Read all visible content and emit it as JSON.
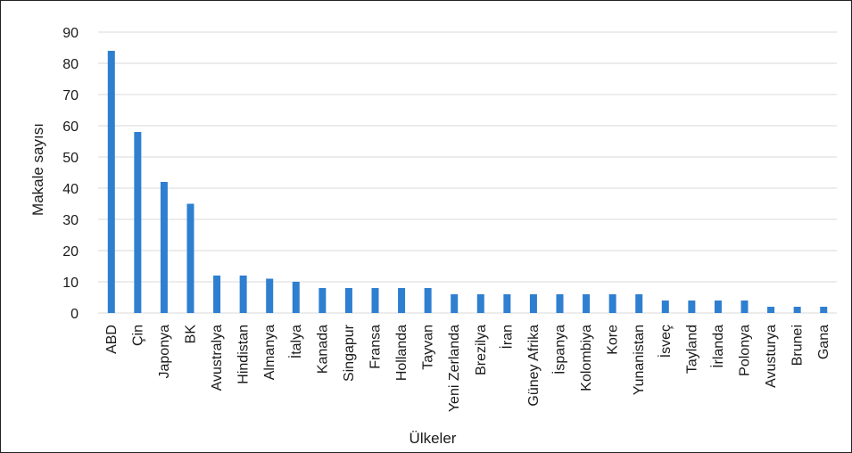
{
  "chart_data": {
    "type": "bar",
    "title": "",
    "xlabel": "Ülkeler",
    "ylabel": "Makale sayısı",
    "ylim": [
      0,
      90
    ],
    "yticks": [
      0,
      10,
      20,
      30,
      40,
      50,
      60,
      70,
      80,
      90
    ],
    "grid": true,
    "legend": "none",
    "bar_color": "#2e7fd0",
    "grid_color": "#d9d9d9",
    "categories": [
      "ABD",
      "Çin",
      "Japonya",
      "BK",
      "Avustralya",
      "Hindistan",
      "Almanya",
      "İtalya",
      "Kanada",
      "Singapur",
      "Fransa",
      "Hollanda",
      "Tayvan",
      "Yeni Zerlanda",
      "Brezilya",
      "İran",
      "Güney Afrika",
      "İspanya",
      "Kolombiya",
      "Kore",
      "Yunanistan",
      "İsveç",
      "Tayland",
      "İrlanda",
      "Polonya",
      "Avusturya",
      "Brunei",
      "Gana"
    ],
    "values": [
      84,
      58,
      42,
      35,
      12,
      12,
      11,
      10,
      8,
      8,
      8,
      8,
      8,
      6,
      6,
      6,
      6,
      6,
      6,
      6,
      6,
      4,
      4,
      4,
      4,
      2,
      2,
      2
    ]
  }
}
